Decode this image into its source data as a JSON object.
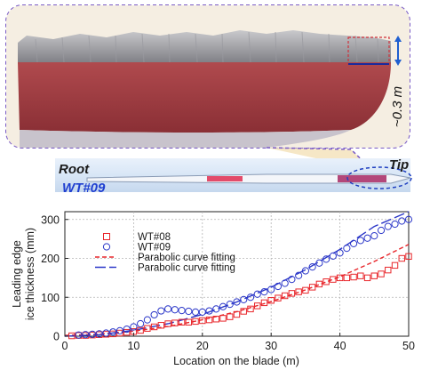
{
  "photo": {
    "dimension_label": "~0.3 m",
    "root_label": "Root",
    "tip_label": "Tip",
    "turbine_label": "WT#09"
  },
  "colors": {
    "wt08": "#e8262b",
    "wt09": "#2a36c8",
    "callout_border": "#7a5cc6",
    "callout_fill": "#f6e7c6",
    "ice_red": "#9c3b3f"
  },
  "chart_data": {
    "type": "scatter",
    "xlabel": "Location on the blade (m)",
    "ylabel_line1": "Leading edge",
    "ylabel_line2": "ice thickness (mm)",
    "xlim": [
      0,
      50
    ],
    "ylim": [
      0,
      320
    ],
    "xticks": [
      0,
      10,
      20,
      30,
      40,
      50
    ],
    "yticks": [
      0,
      100,
      200,
      300
    ],
    "grid": true,
    "legend_position": "top-left",
    "series": [
      {
        "name": "WT#08",
        "marker": "square",
        "color": "#e8262b",
        "points": [
          [
            1,
            1
          ],
          [
            2,
            2
          ],
          [
            3,
            2
          ],
          [
            4,
            3
          ],
          [
            5,
            4
          ],
          [
            6,
            5
          ],
          [
            7,
            6
          ],
          [
            8,
            8
          ],
          [
            9,
            10
          ],
          [
            10,
            12
          ],
          [
            11,
            15
          ],
          [
            12,
            20
          ],
          [
            13,
            24
          ],
          [
            14,
            28
          ],
          [
            15,
            32
          ],
          [
            16,
            34
          ],
          [
            17,
            36
          ],
          [
            18,
            36
          ],
          [
            19,
            38
          ],
          [
            20,
            40
          ],
          [
            21,
            42
          ],
          [
            22,
            44
          ],
          [
            23,
            46
          ],
          [
            24,
            50
          ],
          [
            25,
            56
          ],
          [
            26,
            64
          ],
          [
            27,
            70
          ],
          [
            28,
            78
          ],
          [
            29,
            86
          ],
          [
            30,
            92
          ],
          [
            31,
            98
          ],
          [
            32,
            104
          ],
          [
            33,
            110
          ],
          [
            34,
            114
          ],
          [
            35,
            118
          ],
          [
            36,
            126
          ],
          [
            37,
            134
          ],
          [
            38,
            140
          ],
          [
            39,
            146
          ],
          [
            40,
            150
          ],
          [
            41,
            150
          ],
          [
            42,
            152
          ],
          [
            43,
            155
          ],
          [
            44,
            150
          ],
          [
            45,
            155
          ],
          [
            46,
            160
          ],
          [
            47,
            170
          ],
          [
            48,
            182
          ],
          [
            49,
            200
          ],
          [
            50,
            205
          ]
        ]
      },
      {
        "name": "WT#09",
        "marker": "circle",
        "color": "#2a36c8",
        "points": [
          [
            2,
            3
          ],
          [
            3,
            4
          ],
          [
            4,
            5
          ],
          [
            5,
            6
          ],
          [
            6,
            8
          ],
          [
            7,
            11
          ],
          [
            8,
            14
          ],
          [
            9,
            18
          ],
          [
            10,
            24
          ],
          [
            11,
            32
          ],
          [
            12,
            42
          ],
          [
            13,
            55
          ],
          [
            14,
            65
          ],
          [
            15,
            70
          ],
          [
            16,
            68
          ],
          [
            17,
            66
          ],
          [
            18,
            64
          ],
          [
            19,
            62
          ],
          [
            20,
            62
          ],
          [
            21,
            65
          ],
          [
            22,
            70
          ],
          [
            23,
            76
          ],
          [
            24,
            82
          ],
          [
            25,
            88
          ],
          [
            26,
            94
          ],
          [
            27,
            100
          ],
          [
            28,
            108
          ],
          [
            29,
            114
          ],
          [
            30,
            120
          ],
          [
            31,
            128
          ],
          [
            32,
            136
          ],
          [
            33,
            146
          ],
          [
            34,
            156
          ],
          [
            35,
            168
          ],
          [
            36,
            178
          ],
          [
            37,
            188
          ],
          [
            38,
            198
          ],
          [
            39,
            206
          ],
          [
            40,
            214
          ],
          [
            41,
            226
          ],
          [
            42,
            238
          ],
          [
            43,
            246
          ],
          [
            44,
            252
          ],
          [
            45,
            258
          ],
          [
            46,
            272
          ],
          [
            47,
            282
          ],
          [
            48,
            288
          ],
          [
            49,
            296
          ],
          [
            50,
            300
          ]
        ]
      },
      {
        "name": "Parabolic curve fitting",
        "style": "dashed",
        "color": "#e8262b",
        "points": [
          [
            0,
            2
          ],
          [
            5,
            5
          ],
          [
            10,
            13
          ],
          [
            15,
            25
          ],
          [
            20,
            42
          ],
          [
            25,
            63
          ],
          [
            30,
            89
          ],
          [
            35,
            119
          ],
          [
            40,
            153
          ],
          [
            45,
            192
          ],
          [
            50,
            236
          ]
        ]
      },
      {
        "name": "Parabolic curve fitting",
        "style": "long-dash",
        "color": "#2a36c8",
        "points": [
          [
            0,
            0
          ],
          [
            5,
            4
          ],
          [
            10,
            15
          ],
          [
            15,
            32
          ],
          [
            20,
            56
          ],
          [
            25,
            88
          ],
          [
            30,
            126
          ],
          [
            35,
            171
          ],
          [
            40,
            223
          ],
          [
            45,
            282
          ],
          [
            50,
            320
          ]
        ]
      }
    ]
  }
}
